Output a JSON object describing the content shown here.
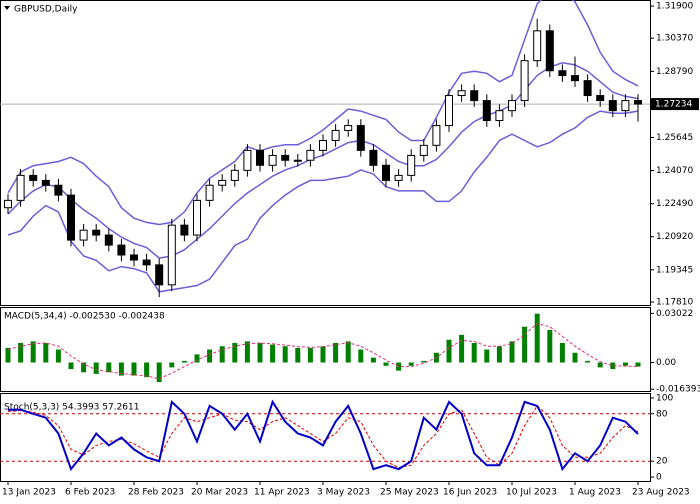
{
  "chart_data": [
    {
      "type": "candlestick",
      "title": "GBPUSD,Daily",
      "categories": [
        "13 Jan 2023",
        null,
        null,
        null,
        null,
        "6 Feb 2023",
        null,
        null,
        null,
        null,
        "28 Feb 2023",
        null,
        null,
        null,
        null,
        "20 Mar 2023",
        null,
        null,
        null,
        null,
        "11 Apr 2023",
        null,
        null,
        null,
        null,
        "3 May 2023",
        null,
        null,
        null,
        null,
        "25 May 2023",
        null,
        null,
        null,
        null,
        "16 Jun 2023",
        null,
        null,
        null,
        null,
        "10 Jul 2023",
        null,
        null,
        null,
        null,
        "1 Aug 2023",
        null,
        null,
        null,
        null,
        "23 Aug 2023"
      ],
      "open": [
        1.223,
        1.2265,
        1.2384,
        1.236,
        1.2337,
        1.229,
        1.2076,
        1.2123,
        1.21,
        1.2052,
        1.2005,
        1.1981,
        1.1958,
        1.1863,
        1.2147,
        1.21,
        1.2265,
        1.2337,
        1.236,
        1.2408,
        1.2503,
        1.2432,
        1.2479,
        1.2456,
        1.2456,
        1.2503,
        1.255,
        1.2598,
        1.2621,
        1.2503,
        1.2432,
        1.236,
        1.2384,
        1.2479,
        1.2527,
        1.2621,
        1.2764,
        1.2787,
        1.274,
        1.2645,
        1.2692,
        1.274,
        1.293,
        1.3072,
        1.2882,
        1.2859,
        1.2835,
        1.2764,
        1.274,
        1.2692,
        1.274
      ],
      "high": [
        1.2295,
        1.2414,
        1.2414,
        1.239,
        1.2367,
        1.232,
        1.2153,
        1.2153,
        1.213,
        1.2082,
        1.2035,
        1.2011,
        1.1988,
        1.2177,
        1.2177,
        1.2295,
        1.2367,
        1.239,
        1.2438,
        1.2533,
        1.2533,
        1.2509,
        1.2509,
        1.2486,
        1.2533,
        1.258,
        1.2628,
        1.2651,
        1.2651,
        1.2533,
        1.2462,
        1.2414,
        1.2509,
        1.2557,
        1.2651,
        1.2794,
        1.2817,
        1.2817,
        1.277,
        1.2722,
        1.277,
        1.296,
        1.313,
        1.3102,
        1.2912,
        1.295,
        1.2865,
        1.2794,
        1.277,
        1.277,
        1.277
      ],
      "low": [
        1.22,
        1.2235,
        1.233,
        1.2307,
        1.226,
        1.2046,
        1.2046,
        1.207,
        1.2022,
        1.1975,
        1.1951,
        1.1928,
        1.1805,
        1.1833,
        1.207,
        1.207,
        1.2235,
        1.2307,
        1.233,
        1.2378,
        1.2402,
        1.2402,
        1.2426,
        1.2426,
        1.2426,
        1.2473,
        1.252,
        1.2568,
        1.2473,
        1.2402,
        1.233,
        1.233,
        1.2354,
        1.2449,
        1.2497,
        1.2591,
        1.2734,
        1.271,
        1.2615,
        1.2615,
        1.2662,
        1.271,
        1.29,
        1.2852,
        1.2829,
        1.2805,
        1.2734,
        1.271,
        1.2662,
        1.2662,
        1.264
      ],
      "close": [
        1.2265,
        1.2384,
        1.236,
        1.2337,
        1.229,
        1.2076,
        1.2123,
        1.21,
        1.2052,
        1.2005,
        1.1981,
        1.1958,
        1.1863,
        1.2147,
        1.21,
        1.2265,
        1.2337,
        1.236,
        1.2408,
        1.2503,
        1.2432,
        1.2479,
        1.2456,
        1.2456,
        1.2503,
        1.255,
        1.2598,
        1.2621,
        1.2503,
        1.2432,
        1.236,
        1.2384,
        1.2479,
        1.2527,
        1.2621,
        1.2764,
        1.2787,
        1.274,
        1.2645,
        1.2692,
        1.274,
        1.293,
        1.3072,
        1.2882,
        1.2859,
        1.2835,
        1.2764,
        1.274,
        1.2692,
        1.274,
        1.27234
      ],
      "up_color": "#ffffff",
      "down_color": "#000000",
      "bands": {
        "color": "#6a5fd6",
        "upper": [
          1.23,
          1.24,
          1.243,
          1.244,
          1.245,
          1.247,
          1.244,
          1.238,
          1.233,
          1.223,
          1.218,
          1.216,
          1.215,
          1.216,
          1.221,
          1.23,
          1.237,
          1.241,
          1.245,
          1.252,
          1.25,
          1.252,
          1.253,
          1.253,
          1.256,
          1.26,
          1.265,
          1.27,
          1.269,
          1.267,
          1.265,
          1.259,
          1.255,
          1.255,
          1.266,
          1.278,
          1.287,
          1.288,
          1.287,
          1.283,
          1.286,
          1.303,
          1.32,
          1.326,
          1.326,
          1.321,
          1.31,
          1.297,
          1.288,
          1.284,
          1.281
        ],
        "middle": [
          1.22,
          1.226,
          1.231,
          1.234,
          1.233,
          1.227,
          1.222,
          1.218,
          1.213,
          1.209,
          1.206,
          1.204,
          1.199,
          1.2,
          1.203,
          1.208,
          1.213,
          1.219,
          1.225,
          1.23,
          1.234,
          1.238,
          1.241,
          1.243,
          1.246,
          1.248,
          1.251,
          1.254,
          1.255,
          1.253,
          1.249,
          1.245,
          1.243,
          1.243,
          1.246,
          1.252,
          1.259,
          1.264,
          1.267,
          1.269,
          1.272,
          1.279,
          1.286,
          1.29,
          1.292,
          1.291,
          1.288,
          1.283,
          1.278,
          1.276,
          1.275
        ],
        "lower": [
          1.21,
          1.212,
          1.219,
          1.224,
          1.221,
          1.207,
          1.2,
          1.198,
          1.193,
          1.195,
          1.194,
          1.192,
          1.183,
          1.184,
          1.185,
          1.186,
          1.189,
          1.197,
          1.205,
          1.208,
          1.218,
          1.224,
          1.229,
          1.233,
          1.236,
          1.236,
          1.237,
          1.238,
          1.241,
          1.239,
          1.233,
          1.231,
          1.231,
          1.231,
          1.226,
          1.226,
          1.231,
          1.24,
          1.247,
          1.255,
          1.258,
          1.255,
          1.252,
          1.254,
          1.258,
          1.261,
          1.266,
          1.269,
          1.268,
          1.268,
          1.269
        ]
      },
      "current_price": 1.27234,
      "ylim": [
        1.1767,
        1.3214
      ],
      "yticks": [
        {
          "value": 1.319,
          "label": "1.31900"
        },
        {
          "value": 1.3037,
          "label": "1.30370"
        },
        {
          "value": 1.2879,
          "label": "1.28790"
        },
        1.25645,
        {
          "value": 1.2407,
          "label": "1.24070"
        },
        {
          "value": 1.2249,
          "label": "1.22490"
        },
        {
          "value": 1.2092,
          "label": "1.20920"
        },
        1.19345,
        {
          "value": 1.1781,
          "label": "1.17810"
        }
      ]
    },
    {
      "type": "macd",
      "label": "MACD(5,34,4) -0.002530 -0.002438",
      "values": [
        0.009,
        0.012,
        0.013,
        0.012,
        0.008,
        -0.004,
        -0.006,
        -0.007,
        -0.006,
        -0.008,
        -0.008,
        -0.009,
        -0.012,
        -0.003,
        0.001,
        0.005,
        0.008,
        0.01,
        0.012,
        0.013,
        0.012,
        0.011,
        0.01,
        0.009,
        0.009,
        0.01,
        0.012,
        0.013,
        0.008,
        0.003,
        -0.002,
        -0.005,
        -0.002,
        0.001,
        0.006,
        0.014,
        0.017,
        0.012,
        0.008,
        0.01,
        0.013,
        0.022,
        0.03,
        0.02,
        0.012,
        0.006,
        0.001,
        -0.003,
        -0.004,
        -0.002,
        -0.00253
      ],
      "color": "#008000",
      "signal": [
        0.008,
        0.01,
        0.0115,
        0.012,
        0.01,
        0.004,
        -0.001,
        -0.0045,
        -0.0055,
        -0.0068,
        -0.0075,
        -0.0083,
        -0.01,
        -0.0065,
        -0.0025,
        0.0015,
        0.005,
        0.0078,
        0.01,
        0.0115,
        0.012,
        0.0115,
        0.0107,
        0.0098,
        0.0093,
        0.0097,
        0.011,
        0.0122,
        0.01,
        0.006,
        0.0015,
        -0.0025,
        -0.0025,
        -0.0005,
        0.003,
        0.009,
        0.0135,
        0.013,
        0.01,
        0.01,
        0.0117,
        0.017,
        0.024,
        0.022,
        0.016,
        0.01,
        0.005,
        0.0005,
        -0.002,
        -0.0022,
        -0.002438
      ],
      "signal_color": "#e0307a",
      "ylim": [
        -0.0175,
        0.0335
      ],
      "yticks": [
        0.03022,
        {
          "value": 0,
          "label": "0.00"
        },
        -0.016393
      ]
    },
    {
      "type": "stochastic",
      "label": "Stoch(5,3,3) 54.3993 57.2611",
      "main": [
        85,
        85,
        80,
        75,
        55,
        10,
        30,
        55,
        40,
        50,
        35,
        25,
        20,
        95,
        80,
        45,
        90,
        80,
        60,
        80,
        45,
        95,
        70,
        55,
        50,
        40,
        70,
        90,
        55,
        10,
        15,
        10,
        20,
        75,
        60,
        95,
        80,
        30,
        15,
        15,
        50,
        95,
        90,
        60,
        10,
        30,
        20,
        40,
        75,
        70,
        54.3993
      ],
      "main_color": "#0000c8",
      "signal": [
        83,
        84,
        82,
        78,
        65,
        35,
        28,
        40,
        45,
        48,
        42,
        33,
        25,
        55,
        75,
        70,
        75,
        80,
        72,
        70,
        60,
        70,
        75,
        65,
        55,
        45,
        55,
        75,
        70,
        40,
        20,
        12,
        15,
        40,
        55,
        80,
        85,
        55,
        25,
        15,
        30,
        65,
        90,
        75,
        40,
        25,
        25,
        30,
        50,
        65,
        57.2611
      ],
      "signal_color": "#e00000",
      "levels": [
        80,
        20
      ],
      "ylim": [
        -5,
        105
      ],
      "yticks": [
        100,
        80,
        20,
        0
      ]
    }
  ]
}
